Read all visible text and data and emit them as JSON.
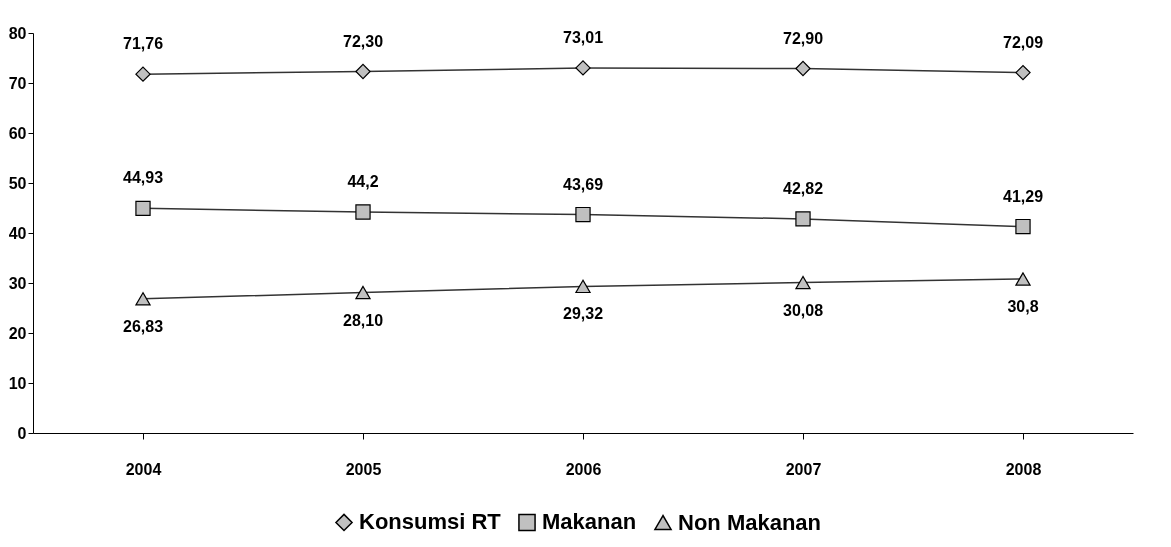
{
  "chart_data": {
    "type": "line",
    "categories": [
      "2004",
      "2005",
      "2006",
      "2007",
      "2008"
    ],
    "series": [
      {
        "name": "Konsumsi RT",
        "color": "#c0c0c0",
        "marker": "diamond",
        "values": [
          71.76,
          72.3,
          73.01,
          72.9,
          72.09
        ],
        "value_labels": [
          "71,76",
          "72,30",
          "73,01",
          "72,90",
          "72,09"
        ]
      },
      {
        "name": "Makanan",
        "color": "#c0c0c0",
        "marker": "square",
        "values": [
          44.93,
          44.2,
          43.69,
          42.82,
          41.29
        ],
        "value_labels": [
          "44,93",
          "44,2",
          "43,69",
          "42,82",
          "41,29"
        ]
      },
      {
        "name": "Non Makanan",
        "color": "#c0c0c0",
        "marker": "triangle",
        "values": [
          26.83,
          28.1,
          29.32,
          30.08,
          30.8
        ],
        "value_labels": [
          "26,83",
          "28,10",
          "29,32",
          "30,08",
          "30,8"
        ]
      }
    ],
    "ylim": [
      0,
      80
    ],
    "yticks": [
      0,
      10,
      20,
      30,
      40,
      50,
      60,
      70,
      80
    ],
    "grid": false,
    "legend": "bottom"
  }
}
